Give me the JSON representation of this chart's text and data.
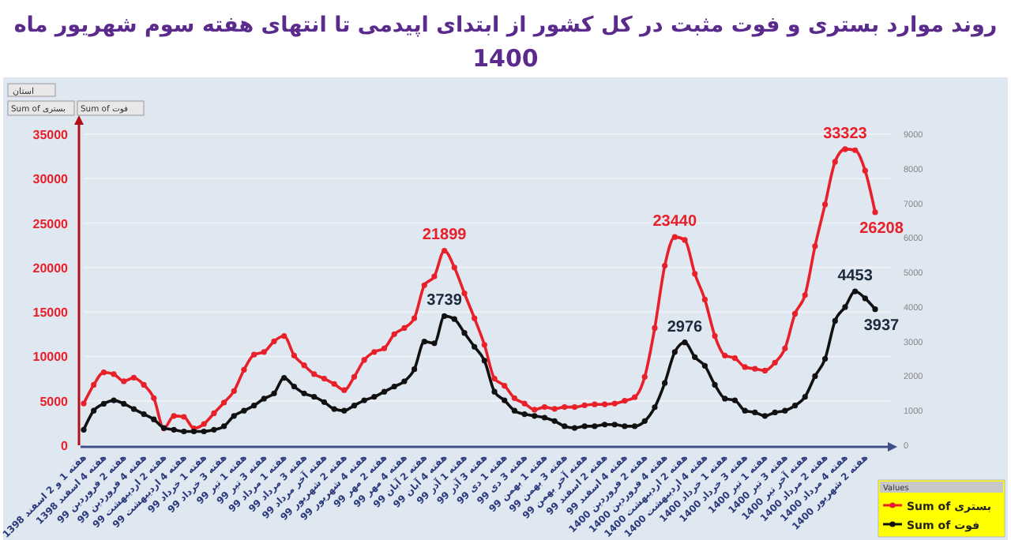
{
  "chart_data": {
    "type": "line",
    "title": "روند موارد بستری و فوت مثبت در کل کشور از ابتدای اپیدمی تا انتهای هفته سوم شهریور ماه 1400",
    "categories": [
      "هفته 1 و 2 اسفند 1398",
      null,
      "هفته 4 اسفند 1398",
      null,
      "هفته 2 فروردین 99",
      null,
      "هفته 4 فروردین 99",
      null,
      "هفته 2 اردیبهشت 99",
      null,
      "هفته 4 اردیبهشت 99",
      null,
      "هفته 1 خرداد 99",
      null,
      "هفته 3 خرداد 99",
      null,
      "هفته 1 تیر 99",
      null,
      "هفته 3 تیر 99",
      null,
      "هفته 1 مرداد 99",
      null,
      "هفته 3 مرداد 99",
      null,
      "هفته آخر مرداد 99",
      null,
      "هفته 2 شهریور 99",
      null,
      "هفته 4 شهریور 99",
      null,
      "هفته 2 مهر 99",
      null,
      "هفته 4 مهر 99",
      null,
      "هفته 2 آبان 99",
      null,
      "هفته 4 آبان 99",
      null,
      "هفته 1 آذر 99",
      null,
      "هفته 3 آذر 99",
      null,
      "هفته 1 دی 99",
      null,
      "هفته 3 دی 99",
      null,
      "هفته 1 بهمن 99",
      null,
      "هفته 3 بهمن 99",
      null,
      "هفته آخر بهمن 99",
      null,
      "هفته 2 اسفند 99",
      null,
      "هفته 4 اسفند 99",
      null,
      "هفته 2 فروردین 1400",
      null,
      "هفته 4 فروردین 1400",
      null,
      "هفته 2 اردیبهشت 1400",
      null,
      "هفته 4 اردیبهشت 1400",
      null,
      "هفته 1 خرداد 1400",
      null,
      "هفته 3 خرداد 1400",
      null,
      "هفته 1 تیر 1400",
      null,
      "هفته 3 تیر 1400",
      null,
      "هفته آخر تیر 1400",
      null,
      "هفته 2 مرداد 1400",
      null,
      "هفته 4 مرداد 1400",
      null,
      "هفته 2 شهریور 1400",
      null
    ],
    "series": [
      {
        "name": "Sum of بستری",
        "color": "#e8202a",
        "values": [
          4700,
          6800,
          8200,
          8000,
          7200,
          7600,
          6800,
          5300,
          1900,
          3300,
          3200,
          1900,
          2400,
          3600,
          4800,
          6100,
          8500,
          10200,
          10500,
          11700,
          12300,
          10100,
          9000,
          8000,
          7500,
          6900,
          6200,
          7700,
          9600,
          10500,
          10900,
          12500,
          13200,
          14300,
          18000,
          19000,
          21899,
          20000,
          17100,
          14300,
          11300,
          7500,
          6700,
          5300,
          4700,
          4000,
          4300,
          4100,
          4300,
          4300,
          4500,
          4600,
          4600,
          4700,
          5000,
          5400,
          7700,
          13200,
          20200,
          23440,
          23100,
          19300,
          16400,
          12300,
          10100,
          9800,
          8800,
          8600,
          8400,
          9300,
          10900,
          14800,
          16900,
          22400,
          27100,
          31900,
          33323,
          33200,
          30900,
          26208
        ],
        "value_labels": [
          null,
          null,
          null,
          null,
          null,
          null,
          null,
          null,
          null,
          null,
          null,
          null,
          null,
          null,
          null,
          null,
          null,
          null,
          null,
          null,
          null,
          null,
          null,
          null,
          null,
          null,
          null,
          null,
          null,
          null,
          null,
          null,
          null,
          null,
          null,
          null,
          "21899",
          null,
          null,
          null,
          null,
          null,
          null,
          null,
          null,
          null,
          null,
          null,
          null,
          null,
          null,
          null,
          null,
          null,
          null,
          null,
          null,
          null,
          null,
          "23440",
          null,
          null,
          null,
          null,
          null,
          null,
          null,
          null,
          null,
          null,
          null,
          null,
          null,
          null,
          null,
          null,
          "33323",
          null,
          null,
          "26208"
        ]
      },
      {
        "name": "Sum of فوت",
        "color": "#111111",
        "axis": "y2",
        "values": [
          450,
          1000,
          1200,
          1300,
          1200,
          1050,
          900,
          750,
          500,
          450,
          400,
          400,
          400,
          450,
          550,
          850,
          1000,
          1150,
          1350,
          1500,
          1950,
          1700,
          1500,
          1400,
          1250,
          1050,
          1000,
          1150,
          1300,
          1400,
          1550,
          1700,
          1850,
          2200,
          3000,
          2950,
          3739,
          3650,
          3250,
          2850,
          2450,
          1550,
          1300,
          1000,
          900,
          850,
          800,
          700,
          550,
          500,
          550,
          550,
          600,
          600,
          550,
          550,
          700,
          1100,
          1800,
          2700,
          2976,
          2550,
          2300,
          1750,
          1350,
          1300,
          1000,
          950,
          850,
          950,
          1000,
          1150,
          1400,
          2000,
          2500,
          3600,
          4000,
          4453,
          4250,
          3937
        ],
        "value_labels": [
          null,
          null,
          null,
          null,
          null,
          null,
          null,
          null,
          null,
          null,
          null,
          null,
          null,
          null,
          null,
          null,
          null,
          null,
          null,
          null,
          null,
          null,
          null,
          null,
          null,
          null,
          null,
          null,
          null,
          null,
          null,
          null,
          null,
          null,
          null,
          null,
          "3739",
          null,
          null,
          null,
          null,
          null,
          null,
          null,
          null,
          null,
          null,
          null,
          null,
          null,
          null,
          null,
          null,
          null,
          null,
          null,
          null,
          null,
          null,
          null,
          "2976",
          null,
          null,
          null,
          null,
          null,
          null,
          null,
          null,
          null,
          null,
          null,
          null,
          null,
          null,
          null,
          null,
          "4453",
          null,
          "3937"
        ]
      }
    ],
    "ylim": [
      0,
      35000
    ],
    "yticks": [
      0,
      5000,
      10000,
      15000,
      20000,
      25000,
      30000,
      35000
    ],
    "y2lim": [
      0,
      9000
    ],
    "y2ticks": [
      0,
      1000,
      2000,
      3000,
      4000,
      5000,
      6000,
      7000,
      8000,
      9000
    ],
    "grid": "y",
    "marker": "circle",
    "line_style": "solid",
    "legend": "bottom right",
    "legend_title": "Values",
    "annotations": [
      "استان",
      "Sum of بستری",
      "Sum of فوت"
    ]
  }
}
